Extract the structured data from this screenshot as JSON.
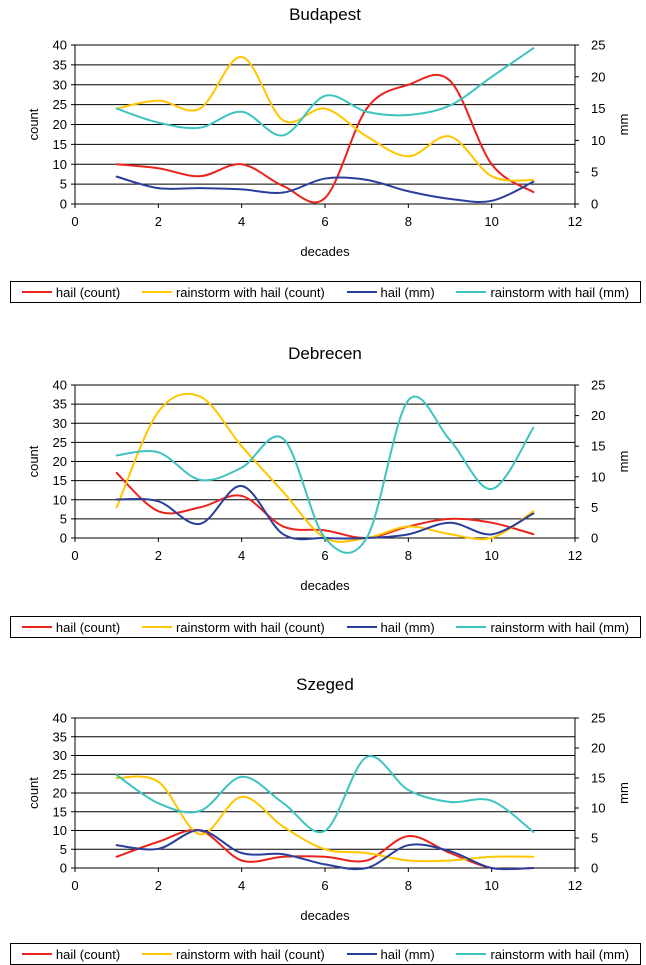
{
  "chart_data": [
    {
      "type": "line",
      "title": "Budapest",
      "xlabel": "decades",
      "ylabel": "count",
      "y2label": "mm",
      "xlim": [
        0,
        12
      ],
      "ylim": [
        0,
        40
      ],
      "y2lim": [
        0,
        25
      ],
      "xticks": [
        "0",
        "2",
        "4",
        "6",
        "8",
        "10",
        "12"
      ],
      "yticks": [
        "0",
        "5",
        "10",
        "15",
        "20",
        "25",
        "30",
        "35",
        "40"
      ],
      "y2ticks": [
        "0",
        "5",
        "10",
        "15",
        "20",
        "25"
      ],
      "grid": true,
      "legend": "bottom",
      "x": [
        1,
        2,
        3,
        4,
        5,
        6,
        7,
        8,
        9,
        10,
        11
      ],
      "series": [
        {
          "name": "hail (count)",
          "axis": "left",
          "color": "#e8241c",
          "values": [
            10,
            9,
            7,
            10,
            4.5,
            1.5,
            24,
            30,
            31,
            10,
            3
          ]
        },
        {
          "name": "rainstorm with hail (count)",
          "axis": "left",
          "color": "#ffc600",
          "values": [
            24,
            26,
            24,
            37,
            21,
            24,
            17,
            12,
            17,
            7,
            6
          ]
        },
        {
          "name": "hail (mm)",
          "axis": "right",
          "color": "#2b3e9c",
          "values": [
            4.3,
            2.5,
            2.5,
            2.3,
            1.8,
            4,
            3.8,
            2,
            0.8,
            0.5,
            3.5
          ]
        },
        {
          "name": "rainstorm with hail (mm)",
          "axis": "right",
          "color": "#3ec4c0",
          "values": [
            15,
            12.8,
            12,
            14.5,
            10.8,
            17,
            14.5,
            14,
            15.5,
            20,
            24.5
          ]
        }
      ]
    },
    {
      "type": "line",
      "title": "Debrecen",
      "xlabel": "decades",
      "ylabel": "count",
      "y2label": "mm",
      "xlim": [
        0,
        12
      ],
      "ylim": [
        0,
        40
      ],
      "y2lim": [
        0,
        25
      ],
      "xticks": [
        "0",
        "2",
        "4",
        "6",
        "8",
        "10",
        "12"
      ],
      "yticks": [
        "0",
        "5",
        "10",
        "15",
        "20",
        "25",
        "30",
        "35",
        "40"
      ],
      "y2ticks": [
        "0",
        "5",
        "10",
        "15",
        "20",
        "25"
      ],
      "grid": true,
      "legend": "bottom",
      "x": [
        1,
        2,
        3,
        4,
        5,
        6,
        7,
        8,
        9,
        10,
        11
      ],
      "series": [
        {
          "name": "hail (count)",
          "axis": "left",
          "color": "#e8241c",
          "values": [
            17,
            7,
            8,
            11,
            3,
            2,
            0,
            3,
            5,
            4,
            1
          ]
        },
        {
          "name": "rainstorm with hail (count)",
          "axis": "left",
          "color": "#ffc600",
          "values": [
            8,
            33,
            37,
            24,
            12,
            0,
            0,
            3,
            1,
            0,
            7
          ]
        },
        {
          "name": "hail (mm)",
          "axis": "right",
          "color": "#2b3e9c",
          "values": [
            6.3,
            6,
            2.3,
            8.5,
            0.6,
            0,
            0,
            0.6,
            2.5,
            0.6,
            4
          ]
        },
        {
          "name": "rainstorm with hail (mm)",
          "axis": "right",
          "color": "#3ec4c0",
          "values": [
            13.5,
            14,
            9.5,
            11.5,
            16.2,
            0,
            0,
            22.5,
            16,
            8,
            18
          ]
        }
      ]
    },
    {
      "type": "line",
      "title": "Szeged",
      "xlabel": "decades",
      "ylabel": "count",
      "y2label": "mm",
      "xlim": [
        0,
        12
      ],
      "ylim": [
        0,
        40
      ],
      "y2lim": [
        0,
        25
      ],
      "xticks": [
        "0",
        "2",
        "4",
        "6",
        "8",
        "10",
        "12"
      ],
      "yticks": [
        "0",
        "5",
        "10",
        "15",
        "20",
        "25",
        "30",
        "35",
        "40"
      ],
      "y2ticks": [
        "0",
        "5",
        "10",
        "15",
        "20",
        "25"
      ],
      "grid": true,
      "legend": "bottom",
      "x": [
        1,
        2,
        3,
        4,
        5,
        6,
        7,
        8,
        9,
        10,
        11
      ],
      "series": [
        {
          "name": "hail (count)",
          "axis": "left",
          "color": "#e8241c",
          "values": [
            3,
            7,
            10,
            2,
            3,
            3,
            2,
            8.5,
            4,
            0,
            0
          ]
        },
        {
          "name": "rainstorm with hail (count)",
          "axis": "left",
          "color": "#ffc600",
          "values": [
            24,
            23,
            9,
            19,
            11,
            5,
            4,
            2,
            2,
            3,
            3
          ]
        },
        {
          "name": "hail (mm)",
          "axis": "right",
          "color": "#2b3e9c",
          "values": [
            3.8,
            3.2,
            6.3,
            2.5,
            2.3,
            0.6,
            0,
            3.8,
            2.8,
            0,
            0
          ]
        },
        {
          "name": "rainstorm with hail (mm)",
          "axis": "right",
          "color": "#3ec4c0",
          "values": [
            15.5,
            10.8,
            9.5,
            15.2,
            10.8,
            6.2,
            18.5,
            13,
            11,
            11.2,
            6
          ]
        }
      ]
    }
  ]
}
